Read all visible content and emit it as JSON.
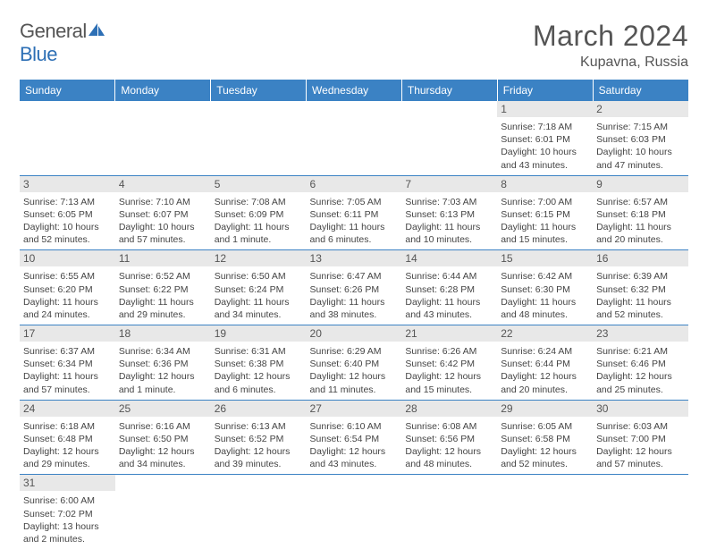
{
  "logo": {
    "text1": "General",
    "text2": "Blue"
  },
  "title": "March 2024",
  "location": "Kupavna, Russia",
  "colors": {
    "header_bg": "#3b82c4",
    "header_fg": "#ffffff",
    "daynum_bg": "#e8e8e8",
    "row_border": "#3b82c4",
    "logo_blue": "#2d6fb5"
  },
  "weekdays": [
    "Sunday",
    "Monday",
    "Tuesday",
    "Wednesday",
    "Thursday",
    "Friday",
    "Saturday"
  ],
  "weeks": [
    [
      {
        "n": "",
        "sr": "",
        "ss": "",
        "dl": ""
      },
      {
        "n": "",
        "sr": "",
        "ss": "",
        "dl": ""
      },
      {
        "n": "",
        "sr": "",
        "ss": "",
        "dl": ""
      },
      {
        "n": "",
        "sr": "",
        "ss": "",
        "dl": ""
      },
      {
        "n": "",
        "sr": "",
        "ss": "",
        "dl": ""
      },
      {
        "n": "1",
        "sr": "Sunrise: 7:18 AM",
        "ss": "Sunset: 6:01 PM",
        "dl": "Daylight: 10 hours and 43 minutes."
      },
      {
        "n": "2",
        "sr": "Sunrise: 7:15 AM",
        "ss": "Sunset: 6:03 PM",
        "dl": "Daylight: 10 hours and 47 minutes."
      }
    ],
    [
      {
        "n": "3",
        "sr": "Sunrise: 7:13 AM",
        "ss": "Sunset: 6:05 PM",
        "dl": "Daylight: 10 hours and 52 minutes."
      },
      {
        "n": "4",
        "sr": "Sunrise: 7:10 AM",
        "ss": "Sunset: 6:07 PM",
        "dl": "Daylight: 10 hours and 57 minutes."
      },
      {
        "n": "5",
        "sr": "Sunrise: 7:08 AM",
        "ss": "Sunset: 6:09 PM",
        "dl": "Daylight: 11 hours and 1 minute."
      },
      {
        "n": "6",
        "sr": "Sunrise: 7:05 AM",
        "ss": "Sunset: 6:11 PM",
        "dl": "Daylight: 11 hours and 6 minutes."
      },
      {
        "n": "7",
        "sr": "Sunrise: 7:03 AM",
        "ss": "Sunset: 6:13 PM",
        "dl": "Daylight: 11 hours and 10 minutes."
      },
      {
        "n": "8",
        "sr": "Sunrise: 7:00 AM",
        "ss": "Sunset: 6:15 PM",
        "dl": "Daylight: 11 hours and 15 minutes."
      },
      {
        "n": "9",
        "sr": "Sunrise: 6:57 AM",
        "ss": "Sunset: 6:18 PM",
        "dl": "Daylight: 11 hours and 20 minutes."
      }
    ],
    [
      {
        "n": "10",
        "sr": "Sunrise: 6:55 AM",
        "ss": "Sunset: 6:20 PM",
        "dl": "Daylight: 11 hours and 24 minutes."
      },
      {
        "n": "11",
        "sr": "Sunrise: 6:52 AM",
        "ss": "Sunset: 6:22 PM",
        "dl": "Daylight: 11 hours and 29 minutes."
      },
      {
        "n": "12",
        "sr": "Sunrise: 6:50 AM",
        "ss": "Sunset: 6:24 PM",
        "dl": "Daylight: 11 hours and 34 minutes."
      },
      {
        "n": "13",
        "sr": "Sunrise: 6:47 AM",
        "ss": "Sunset: 6:26 PM",
        "dl": "Daylight: 11 hours and 38 minutes."
      },
      {
        "n": "14",
        "sr": "Sunrise: 6:44 AM",
        "ss": "Sunset: 6:28 PM",
        "dl": "Daylight: 11 hours and 43 minutes."
      },
      {
        "n": "15",
        "sr": "Sunrise: 6:42 AM",
        "ss": "Sunset: 6:30 PM",
        "dl": "Daylight: 11 hours and 48 minutes."
      },
      {
        "n": "16",
        "sr": "Sunrise: 6:39 AM",
        "ss": "Sunset: 6:32 PM",
        "dl": "Daylight: 11 hours and 52 minutes."
      }
    ],
    [
      {
        "n": "17",
        "sr": "Sunrise: 6:37 AM",
        "ss": "Sunset: 6:34 PM",
        "dl": "Daylight: 11 hours and 57 minutes."
      },
      {
        "n": "18",
        "sr": "Sunrise: 6:34 AM",
        "ss": "Sunset: 6:36 PM",
        "dl": "Daylight: 12 hours and 1 minute."
      },
      {
        "n": "19",
        "sr": "Sunrise: 6:31 AM",
        "ss": "Sunset: 6:38 PM",
        "dl": "Daylight: 12 hours and 6 minutes."
      },
      {
        "n": "20",
        "sr": "Sunrise: 6:29 AM",
        "ss": "Sunset: 6:40 PM",
        "dl": "Daylight: 12 hours and 11 minutes."
      },
      {
        "n": "21",
        "sr": "Sunrise: 6:26 AM",
        "ss": "Sunset: 6:42 PM",
        "dl": "Daylight: 12 hours and 15 minutes."
      },
      {
        "n": "22",
        "sr": "Sunrise: 6:24 AM",
        "ss": "Sunset: 6:44 PM",
        "dl": "Daylight: 12 hours and 20 minutes."
      },
      {
        "n": "23",
        "sr": "Sunrise: 6:21 AM",
        "ss": "Sunset: 6:46 PM",
        "dl": "Daylight: 12 hours and 25 minutes."
      }
    ],
    [
      {
        "n": "24",
        "sr": "Sunrise: 6:18 AM",
        "ss": "Sunset: 6:48 PM",
        "dl": "Daylight: 12 hours and 29 minutes."
      },
      {
        "n": "25",
        "sr": "Sunrise: 6:16 AM",
        "ss": "Sunset: 6:50 PM",
        "dl": "Daylight: 12 hours and 34 minutes."
      },
      {
        "n": "26",
        "sr": "Sunrise: 6:13 AM",
        "ss": "Sunset: 6:52 PM",
        "dl": "Daylight: 12 hours and 39 minutes."
      },
      {
        "n": "27",
        "sr": "Sunrise: 6:10 AM",
        "ss": "Sunset: 6:54 PM",
        "dl": "Daylight: 12 hours and 43 minutes."
      },
      {
        "n": "28",
        "sr": "Sunrise: 6:08 AM",
        "ss": "Sunset: 6:56 PM",
        "dl": "Daylight: 12 hours and 48 minutes."
      },
      {
        "n": "29",
        "sr": "Sunrise: 6:05 AM",
        "ss": "Sunset: 6:58 PM",
        "dl": "Daylight: 12 hours and 52 minutes."
      },
      {
        "n": "30",
        "sr": "Sunrise: 6:03 AM",
        "ss": "Sunset: 7:00 PM",
        "dl": "Daylight: 12 hours and 57 minutes."
      }
    ],
    [
      {
        "n": "31",
        "sr": "Sunrise: 6:00 AM",
        "ss": "Sunset: 7:02 PM",
        "dl": "Daylight: 13 hours and 2 minutes."
      },
      {
        "n": "",
        "sr": "",
        "ss": "",
        "dl": ""
      },
      {
        "n": "",
        "sr": "",
        "ss": "",
        "dl": ""
      },
      {
        "n": "",
        "sr": "",
        "ss": "",
        "dl": ""
      },
      {
        "n": "",
        "sr": "",
        "ss": "",
        "dl": ""
      },
      {
        "n": "",
        "sr": "",
        "ss": "",
        "dl": ""
      },
      {
        "n": "",
        "sr": "",
        "ss": "",
        "dl": ""
      }
    ]
  ]
}
